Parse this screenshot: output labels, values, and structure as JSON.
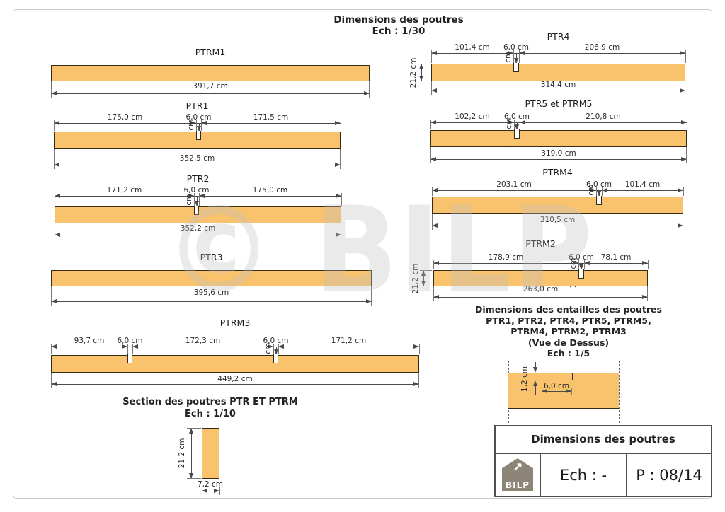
{
  "page": {
    "title": "Dimensions des poutres",
    "scale": "Ech : 1/30"
  },
  "watermark": "© BILP",
  "colors": {
    "beam_fill": "#f9c36d",
    "beam_border": "#362a12",
    "dim_line": "#4a4a4a",
    "logo_gray": "#8e8579"
  },
  "beams": [
    {
      "name": "PTRM1",
      "total": "391,7 cm",
      "segments": [],
      "notch_depth": null
    },
    {
      "name": "PTR1",
      "total": "352,5 cm",
      "segments": [
        "175,0 cm",
        "6,0 cm",
        "171,5 cm"
      ],
      "notch_depth": "10,0 cm"
    },
    {
      "name": "PTR2",
      "total": "352,2 cm",
      "segments": [
        "171,2 cm",
        "6,0 cm",
        "175,0 cm"
      ],
      "notch_depth": "10,0 cm"
    },
    {
      "name": "PTR3",
      "total": "395,6 cm",
      "segments": [],
      "notch_depth": null
    },
    {
      "name": "PTRM3",
      "total": "449,2 cm",
      "segments": [
        "93,7 cm",
        "6,0 cm",
        "172,3 cm",
        "6,0 cm",
        "171,2 cm"
      ],
      "notch_depth": "10,0 cm"
    },
    {
      "name": "PTR4",
      "total": "314,4 cm",
      "segments": [
        "101,4 cm",
        "6,0 cm",
        "206,9 cm"
      ],
      "notch_depth": "10,0 cm",
      "height": "21,2 cm"
    },
    {
      "name": "PTR5 et PTRM5",
      "total": "319,0 cm",
      "segments": [
        "102,2 cm",
        "6,0 cm",
        "210,8 cm"
      ],
      "notch_depth": "10,0 cm"
    },
    {
      "name": "PTRM4",
      "total": "310,5 cm",
      "segments": [
        "203,1 cm",
        "6,0 cm",
        "101,4 cm"
      ],
      "notch_depth": "10,0 cm"
    },
    {
      "name": "PTRM2",
      "total": "263,0 cm",
      "segments": [
        "178,9 cm",
        "6,0 cm",
        "78,1 cm"
      ],
      "notch_depth": "10,0 cm",
      "height": "21,2 cm"
    }
  ],
  "entailles": {
    "title_lines": [
      "Dimensions des entailles des poutres",
      "PTR1, PTR2, PTR4, PTR5, PTRM5,",
      "PTRM4, PTRM2, PTRM3",
      "(Vue de Dessus)",
      "Ech : 1/5"
    ],
    "depth": "1,2 cm",
    "width": "6,0 cm"
  },
  "section": {
    "title": "Section des poutres PTR ET PTRM",
    "scale": "Ech : 1/10",
    "height": "21,2 cm",
    "width": "7,2 cm"
  },
  "title_block": {
    "title": "Dimensions des poutres",
    "logo": "BILP",
    "scale": "Ech : -",
    "page": "P : 08/14"
  }
}
